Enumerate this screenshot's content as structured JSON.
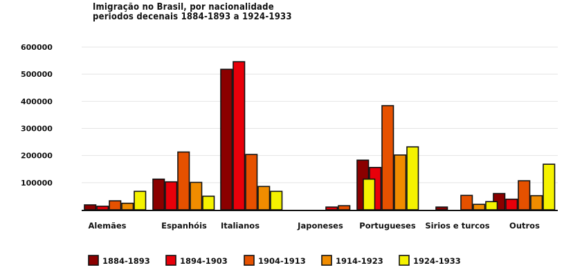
{
  "chart_data": {
    "type": "bar",
    "title_lines": [
      "Imigração no Brasil, por nacionalidade",
      "periodos decenais 1884-1893 a 1924-1933"
    ],
    "categories": [
      "Alemães",
      "Espanhóis",
      "Italianos",
      "Japoneses",
      "Portugueses",
      "Sirios e turcos",
      "Outros"
    ],
    "series": [
      {
        "name": "1884-1893",
        "color": "#8b0000",
        "values": [
          18000,
          113000,
          518000,
          0,
          183000,
          10000,
          60000
        ]
      },
      {
        "name": "1894-1903",
        "color": "#e8000a",
        "values": [
          13000,
          103000,
          546000,
          10000,
          156000,
          0,
          39000
        ]
      },
      {
        "name": "1904-1913",
        "color": "#e65100",
        "values": [
          33000,
          213000,
          204000,
          15000,
          384000,
          53000,
          107000
        ]
      },
      {
        "name": "1914-1923",
        "color": "#f08c00",
        "values": [
          24000,
          101000,
          86000,
          0,
          202000,
          20000,
          52000
        ]
      },
      {
        "name": "1924-1933",
        "color": "#f5f200",
        "values": [
          68000,
          50000,
          68000,
          113000,
          232000,
          30000,
          168000
        ]
      }
    ],
    "y_ticks": [
      "100000",
      "200000",
      "300000",
      "400000",
      "500000",
      "600000"
    ],
    "y_tick_values": [
      100000,
      200000,
      300000,
      400000,
      500000,
      600000
    ],
    "ylim": [
      0,
      600000
    ],
    "grid": true,
    "legend_position": "bottom"
  }
}
